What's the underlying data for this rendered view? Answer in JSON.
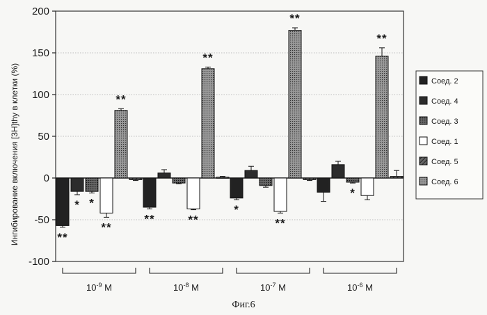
{
  "chart_data": {
    "type": "bar",
    "ylabel": "Ингибирование включения [3H]thy в клетки (%)",
    "ylim": [
      -100,
      200
    ],
    "yticks": [
      -100,
      -50,
      0,
      50,
      100,
      150,
      200
    ],
    "grid": true,
    "legend_placement": "right",
    "caption": "Фиг.6",
    "categories": [
      "10-9 M",
      "10-8 M",
      "10-7 M",
      "10-6 M"
    ],
    "category_labels": [
      {
        "base": "10",
        "exp": "-9",
        "unit": " M"
      },
      {
        "base": "10",
        "exp": "-8",
        "unit": " M"
      },
      {
        "base": "10",
        "exp": "-7",
        "unit": " M"
      },
      {
        "base": "10",
        "exp": "-6",
        "unit": " M"
      }
    ],
    "series": [
      {
        "name": "Соед. 2",
        "values": [
          -57,
          -35,
          -24,
          -17
        ],
        "errors": [
          2,
          2,
          2,
          11
        ],
        "fill": "#222222",
        "pattern": "solid",
        "marks": [
          "**",
          "**",
          "*",
          ""
        ]
      },
      {
        "name": "Соед. 4",
        "values": [
          -16,
          6,
          9,
          16
        ],
        "errors": [
          4,
          4,
          5,
          4
        ],
        "fill": "#2c2c2c",
        "pattern": "solid",
        "marks": [
          "*",
          "",
          "",
          ""
        ]
      },
      {
        "name": "Соед. 3",
        "values": [
          -16,
          -6,
          -9,
          -5
        ],
        "errors": [
          2,
          1,
          2,
          1
        ],
        "fill": "#555555",
        "pattern": "dotted",
        "marks": [
          "*",
          "",
          "",
          "*"
        ]
      },
      {
        "name": "Соед. 1",
        "values": [
          -42,
          -37,
          -40,
          -21
        ],
        "errors": [
          5,
          1,
          2,
          5
        ],
        "fill": "#ffffff",
        "pattern": "outline",
        "marks": [
          "**",
          "**",
          "**",
          ""
        ]
      },
      {
        "name": "Соед. 6",
        "values": [
          81,
          131,
          177,
          146
        ],
        "errors": [
          2,
          2,
          3,
          10
        ],
        "fill": "#888888",
        "pattern": "dotted",
        "marks": [
          "**",
          "**",
          "**",
          "**"
        ]
      },
      {
        "name": "Соед. 5",
        "values": [
          -2,
          1,
          -2,
          2
        ],
        "errors": [
          1,
          1,
          1,
          7
        ],
        "fill": "#404040",
        "pattern": "hatched",
        "marks": [
          "",
          "",
          "",
          ""
        ]
      }
    ],
    "legend": [
      {
        "label": "Соед. 2",
        "fill": "#222222",
        "pattern": "solid"
      },
      {
        "label": "Соед. 4",
        "fill": "#2c2c2c",
        "pattern": "solid"
      },
      {
        "label": "Соед. 3",
        "fill": "#555555",
        "pattern": "dotted"
      },
      {
        "label": "Соед. 1",
        "fill": "#ffffff",
        "pattern": "outline"
      },
      {
        "label": "Соед. 5",
        "fill": "#404040",
        "pattern": "hatched"
      },
      {
        "label": "Соед. 6",
        "fill": "#888888",
        "pattern": "dotted"
      }
    ]
  }
}
